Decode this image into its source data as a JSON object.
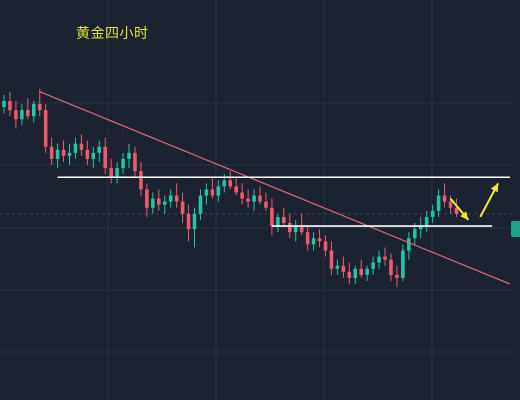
{
  "chart_data": {
    "type": "candlestick",
    "title": "黄金四小时",
    "xlabel": "",
    "ylabel": "",
    "grid": true,
    "ylim": [
      0,
      100
    ],
    "colors": {
      "background": "#1b2230",
      "grid": "#2a3342",
      "up": "#1fc7a5",
      "down": "#f05a6e",
      "trendline": "#d9686f",
      "level_line": "#ffffff",
      "arrow": "#f3ea2a",
      "title": "#e8e23a",
      "price_tag": "#1aa38a"
    },
    "trendline": {
      "from": [
        0,
        83
      ],
      "to": [
        85,
        20
      ]
    },
    "levels": [
      {
        "value": 55,
        "from_index": 9,
        "to_index": 85
      },
      {
        "value": 39,
        "from_index": 45,
        "to_index": 82
      }
    ],
    "current_price_level": 43,
    "arrows": [
      {
        "from": [
          75,
          48
        ],
        "to": [
          78,
          41
        ]
      },
      {
        "from": [
          80,
          42
        ],
        "to": [
          83,
          53
        ]
      }
    ],
    "candles": [
      {
        "o": 78,
        "h": 82,
        "l": 76,
        "c": 80
      },
      {
        "o": 80,
        "h": 83,
        "l": 75,
        "c": 77
      },
      {
        "o": 77,
        "h": 80,
        "l": 71,
        "c": 74
      },
      {
        "o": 74,
        "h": 79,
        "l": 72,
        "c": 77
      },
      {
        "o": 77,
        "h": 81,
        "l": 74,
        "c": 75
      },
      {
        "o": 75,
        "h": 80,
        "l": 73,
        "c": 79
      },
      {
        "o": 79,
        "h": 84,
        "l": 75,
        "c": 77
      },
      {
        "o": 77,
        "h": 79,
        "l": 63,
        "c": 65
      },
      {
        "o": 65,
        "h": 68,
        "l": 59,
        "c": 61
      },
      {
        "o": 61,
        "h": 66,
        "l": 58,
        "c": 64
      },
      {
        "o": 64,
        "h": 67,
        "l": 60,
        "c": 62
      },
      {
        "o": 62,
        "h": 66,
        "l": 59,
        "c": 63
      },
      {
        "o": 63,
        "h": 68,
        "l": 61,
        "c": 66
      },
      {
        "o": 66,
        "h": 69,
        "l": 62,
        "c": 64
      },
      {
        "o": 64,
        "h": 67,
        "l": 59,
        "c": 61
      },
      {
        "o": 61,
        "h": 65,
        "l": 58,
        "c": 63
      },
      {
        "o": 63,
        "h": 67,
        "l": 60,
        "c": 65
      },
      {
        "o": 65,
        "h": 68,
        "l": 56,
        "c": 58
      },
      {
        "o": 58,
        "h": 61,
        "l": 53,
        "c": 55
      },
      {
        "o": 55,
        "h": 60,
        "l": 53,
        "c": 58
      },
      {
        "o": 58,
        "h": 63,
        "l": 56,
        "c": 61
      },
      {
        "o": 61,
        "h": 66,
        "l": 58,
        "c": 63
      },
      {
        "o": 63,
        "h": 65,
        "l": 55,
        "c": 57
      },
      {
        "o": 57,
        "h": 60,
        "l": 49,
        "c": 51
      },
      {
        "o": 51,
        "h": 53,
        "l": 42,
        "c": 45
      },
      {
        "o": 45,
        "h": 50,
        "l": 43,
        "c": 48
      },
      {
        "o": 48,
        "h": 51,
        "l": 44,
        "c": 46
      },
      {
        "o": 46,
        "h": 49,
        "l": 43,
        "c": 47
      },
      {
        "o": 47,
        "h": 51,
        "l": 45,
        "c": 49
      },
      {
        "o": 49,
        "h": 53,
        "l": 45,
        "c": 47
      },
      {
        "o": 47,
        "h": 50,
        "l": 40,
        "c": 43
      },
      {
        "o": 43,
        "h": 46,
        "l": 34,
        "c": 38
      },
      {
        "o": 38,
        "h": 45,
        "l": 32,
        "c": 43
      },
      {
        "o": 43,
        "h": 51,
        "l": 41,
        "c": 49
      },
      {
        "o": 49,
        "h": 53,
        "l": 46,
        "c": 51
      },
      {
        "o": 51,
        "h": 55,
        "l": 48,
        "c": 49
      },
      {
        "o": 49,
        "h": 54,
        "l": 47,
        "c": 52
      },
      {
        "o": 52,
        "h": 56,
        "l": 50,
        "c": 54
      },
      {
        "o": 54,
        "h": 57,
        "l": 51,
        "c": 52
      },
      {
        "o": 52,
        "h": 55,
        "l": 49,
        "c": 50
      },
      {
        "o": 50,
        "h": 53,
        "l": 46,
        "c": 48
      },
      {
        "o": 48,
        "h": 51,
        "l": 45,
        "c": 47
      },
      {
        "o": 47,
        "h": 51,
        "l": 44,
        "c": 49
      },
      {
        "o": 49,
        "h": 52,
        "l": 46,
        "c": 47
      },
      {
        "o": 47,
        "h": 50,
        "l": 44,
        "c": 45
      },
      {
        "o": 45,
        "h": 48,
        "l": 36,
        "c": 39
      },
      {
        "o": 39,
        "h": 43,
        "l": 37,
        "c": 42
      },
      {
        "o": 42,
        "h": 45,
        "l": 39,
        "c": 40
      },
      {
        "o": 40,
        "h": 43,
        "l": 35,
        "c": 37
      },
      {
        "o": 37,
        "h": 41,
        "l": 34,
        "c": 39
      },
      {
        "o": 39,
        "h": 43,
        "l": 36,
        "c": 37
      },
      {
        "o": 37,
        "h": 39,
        "l": 31,
        "c": 33
      },
      {
        "o": 33,
        "h": 37,
        "l": 31,
        "c": 35
      },
      {
        "o": 35,
        "h": 38,
        "l": 32,
        "c": 34
      },
      {
        "o": 34,
        "h": 36,
        "l": 29,
        "c": 31
      },
      {
        "o": 31,
        "h": 34,
        "l": 23,
        "c": 25
      },
      {
        "o": 25,
        "h": 28,
        "l": 23,
        "c": 26
      },
      {
        "o": 26,
        "h": 29,
        "l": 22,
        "c": 24
      },
      {
        "o": 24,
        "h": 27,
        "l": 20,
        "c": 22
      },
      {
        "o": 22,
        "h": 26,
        "l": 20,
        "c": 25
      },
      {
        "o": 25,
        "h": 28,
        "l": 22,
        "c": 23
      },
      {
        "o": 23,
        "h": 26,
        "l": 21,
        "c": 25
      },
      {
        "o": 25,
        "h": 29,
        "l": 23,
        "c": 27
      },
      {
        "o": 27,
        "h": 31,
        "l": 25,
        "c": 29
      },
      {
        "o": 29,
        "h": 32,
        "l": 26,
        "c": 28
      },
      {
        "o": 28,
        "h": 30,
        "l": 21,
        "c": 23
      },
      {
        "o": 23,
        "h": 26,
        "l": 19,
        "c": 22
      },
      {
        "o": 22,
        "h": 33,
        "l": 21,
        "c": 31
      },
      {
        "o": 31,
        "h": 37,
        "l": 28,
        "c": 35
      },
      {
        "o": 35,
        "h": 40,
        "l": 33,
        "c": 38
      },
      {
        "o": 38,
        "h": 42,
        "l": 35,
        "c": 39
      },
      {
        "o": 39,
        "h": 44,
        "l": 37,
        "c": 42
      },
      {
        "o": 42,
        "h": 46,
        "l": 40,
        "c": 44
      },
      {
        "o": 44,
        "h": 51,
        "l": 42,
        "c": 49
      },
      {
        "o": 49,
        "h": 53,
        "l": 45,
        "c": 47
      },
      {
        "o": 47,
        "h": 49,
        "l": 43,
        "c": 45
      },
      {
        "o": 45,
        "h": 48,
        "l": 42,
        "c": 43
      }
    ]
  }
}
